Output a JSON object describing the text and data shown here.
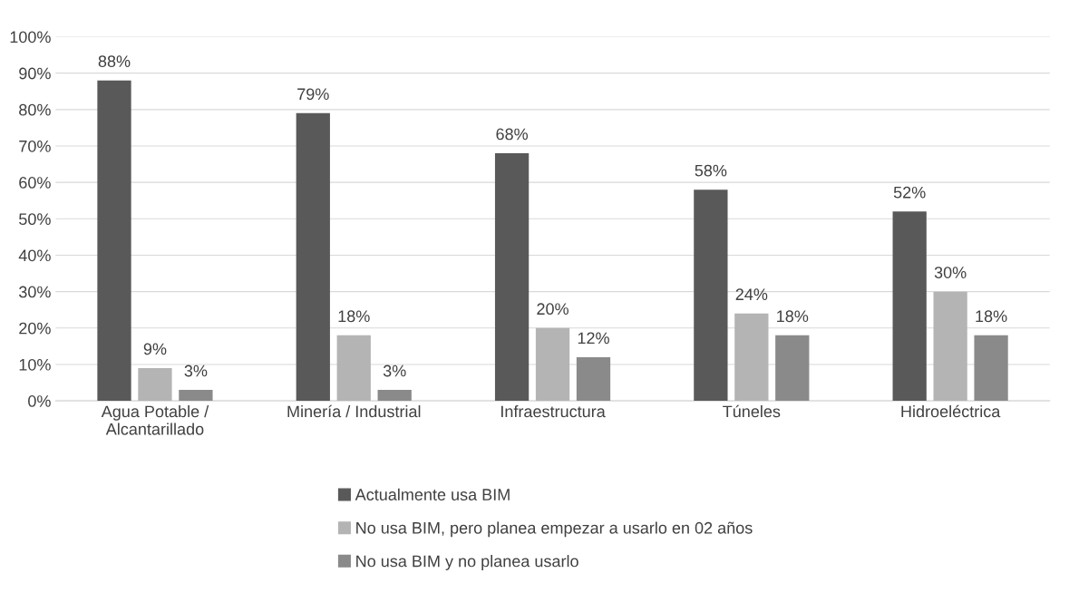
{
  "chart_data": {
    "type": "bar",
    "categories": [
      "Agua Potable /\nAlcantarillado",
      "Minería / Industrial",
      "Infraestructura",
      "Túneles",
      "Hidroeléctrica"
    ],
    "series": [
      {
        "name": "Actualmente usa BIM",
        "color": "#595959",
        "values": [
          88,
          79,
          68,
          58,
          52
        ],
        "value_labels": [
          "88%",
          "79%",
          "68%",
          "58%",
          "52%"
        ]
      },
      {
        "name": "No usa BIM, pero planea empezar a usarlo en 02 años",
        "color": "#b4b4b4",
        "values": [
          9,
          18,
          20,
          24,
          30
        ],
        "value_labels": [
          "9%",
          "18%",
          "20%",
          "24%",
          "30%"
        ]
      },
      {
        "name": "No usa BIM y no planea usarlo",
        "color": "#8a8a8a",
        "values": [
          3,
          3,
          12,
          18,
          18
        ],
        "value_labels": [
          "3%",
          "3%",
          "12%",
          "18%",
          "18%"
        ]
      }
    ],
    "ylim": [
      0,
      100
    ],
    "yticks": [
      {
        "value": 0,
        "label": "0%"
      },
      {
        "value": 10,
        "label": "10%"
      },
      {
        "value": 20,
        "label": "20%"
      },
      {
        "value": 30,
        "label": "30%"
      },
      {
        "value": 40,
        "label": "40%"
      },
      {
        "value": 50,
        "label": "50%"
      },
      {
        "value": 60,
        "label": "60%"
      },
      {
        "value": 70,
        "label": "70%"
      },
      {
        "value": 80,
        "label": "80%"
      },
      {
        "value": 90,
        "label": "90%"
      },
      {
        "value": 100,
        "label": "100%"
      }
    ],
    "grid": "y",
    "legend": "bottom"
  }
}
